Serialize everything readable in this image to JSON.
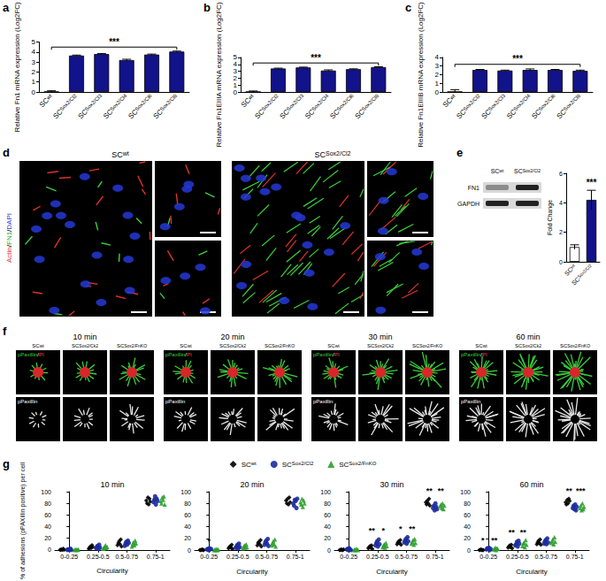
{
  "chart_data": [
    {
      "type": "bar",
      "panel_label": "a",
      "ylabel": "Relative Fn1 mRNA expression (Log2FC)",
      "categories": [
        "SCwt",
        "SCSox2/Cl2",
        "SCSox2/Cl3",
        "SCSox2/Cl4",
        "SCSox2/Cl6",
        "SCSox2/Cl8"
      ],
      "values": [
        0.02,
        3.65,
        3.8,
        3.2,
        3.75,
        4.05
      ],
      "errors": [
        0.1,
        0.05,
        0.05,
        0.08,
        0.05,
        0.05
      ],
      "color": "#12128a",
      "ylim": [
        0,
        5
      ],
      "yticks": [
        0,
        1,
        2,
        3,
        4,
        5
      ],
      "annotations": [
        {
          "text": "***",
          "x": [
            "SCwt",
            "SCSox2/Cl8"
          ],
          "y": 4.5
        }
      ]
    },
    {
      "type": "bar",
      "panel_label": "b",
      "ylabel": "Relative Fn1EIIIA mRNA expression (Log2FC)",
      "categories": [
        "SCwt",
        "SCSox2/Cl2",
        "SCSox2/Cl3",
        "SCSox2/Cl4",
        "SCSox2/Cl6",
        "SCSox2/Cl8"
      ],
      "values": [
        0.02,
        3.4,
        3.55,
        3.1,
        3.3,
        3.6
      ],
      "errors": [
        0.12,
        0.05,
        0.05,
        0.1,
        0.05,
        0.05
      ],
      "color": "#12128a",
      "ylim": [
        0,
        5
      ],
      "yticks": [
        0,
        1,
        2,
        3,
        4,
        5
      ],
      "annotations": [
        {
          "text": "***",
          "x": [
            "SCwt",
            "SCSox2/Cl8"
          ],
          "y": 4.2
        }
      ]
    },
    {
      "type": "bar",
      "panel_label": "c",
      "ylabel": "Relative Fn1EIIIB mRNA expression (Log2FC)",
      "categories": [
        "SCwt",
        "SCSox2/Cl2",
        "SCSox2/Cl3",
        "SCSox2/Cl4",
        "SCSox2/Cl6",
        "SCSox2/Cl8"
      ],
      "values": [
        0.02,
        2.55,
        2.48,
        2.55,
        2.55,
        2.45
      ],
      "errors": [
        0.25,
        0.06,
        0.05,
        0.12,
        0.06,
        0.08
      ],
      "color": "#12128a",
      "ylim": [
        0,
        4
      ],
      "yticks": [
        0,
        1,
        2,
        3,
        4
      ],
      "annotations": [
        {
          "text": "***",
          "x": [
            "SCwt",
            "SCSox2/Cl8"
          ],
          "y": 3.2
        }
      ]
    },
    {
      "type": "bar",
      "panel_label": "e",
      "ylabel": "Fold Change",
      "categories": [
        "SCwt",
        "SCSox2/Cl2"
      ],
      "values": [
        1.0,
        4.2
      ],
      "errors": [
        0.15,
        0.65
      ],
      "colors": [
        "#ffffff",
        "#12128a"
      ],
      "ylim": [
        0,
        6
      ],
      "yticks": [
        0,
        2,
        4,
        6
      ],
      "annotations": [
        {
          "text": "***",
          "x": "SCSox2/Cl2",
          "y": 5.1
        }
      ]
    },
    {
      "type": "scatter",
      "panel_label": "g",
      "title": "10 min",
      "xlabel": "Circularity",
      "ylabel": "% of adhesions (pPAXillin positive) per cell",
      "categories": [
        "0-0.25",
        "0.25-0.5",
        "0.5-0.75",
        "0.75-1"
      ],
      "ylim": [
        0,
        100
      ],
      "yticks": [
        0,
        20,
        40,
        60,
        80,
        100
      ],
      "legend": "top",
      "series": [
        {
          "name": "SCwt",
          "color": "#000000",
          "marker": "diamond",
          "values": [
            [
              0,
              0,
              1,
              0,
              2,
              0
            ],
            [
              2,
              4,
              6,
              3,
              8,
              5
            ],
            [
              8,
              12,
              15,
              10,
              18,
              6
            ],
            [
              85,
              80,
              90,
              78,
              88,
              83
            ]
          ]
        },
        {
          "name": "SCSox2/Cl2",
          "color": "#1c2b9e",
          "marker": "circle",
          "values": [
            [
              0,
              1,
              0,
              0,
              2,
              0
            ],
            [
              3,
              5,
              7,
              2,
              9,
              4
            ],
            [
              7,
              11,
              14,
              9,
              16,
              12
            ],
            [
              82,
              86,
              92,
              78,
              88,
              84
            ]
          ]
        },
        {
          "name": "SCSox2/FnKO",
          "color": "#2ca02c",
          "marker": "triangle",
          "values": [
            [
              0,
              0,
              1,
              0,
              0,
              1
            ],
            [
              2,
              4,
              6,
              8,
              3,
              5
            ],
            [
              6,
              10,
              13,
              8,
              16,
              11
            ],
            [
              84,
              80,
              90,
              86,
              92,
              78
            ]
          ]
        }
      ]
    },
    {
      "type": "scatter",
      "title": "20 min",
      "xlabel": "Circularity",
      "categories": [
        "0-0.25",
        "0.25-0.5",
        "0.5-0.75",
        "0.75-1"
      ],
      "ylim": [
        0,
        100
      ],
      "yticks": [
        0,
        20,
        40,
        60,
        80,
        100
      ],
      "series": [
        {
          "name": "SCwt",
          "color": "#000000",
          "marker": "diamond",
          "values": [
            [
              0,
              0,
              0,
              1,
              0,
              0
            ],
            [
              3,
              5,
              7,
              4,
              9,
              2
            ],
            [
              8,
              12,
              14,
              10,
              17,
              6
            ],
            [
              85,
              80,
              88,
              78,
              90,
              82
            ]
          ]
        },
        {
          "name": "SCSox2/Cl2",
          "color": "#1c2b9e",
          "marker": "circle",
          "values": [
            [
              1,
              2,
              0,
              3,
              1,
              2
            ],
            [
              4,
              6,
              9,
              3,
              11,
              5
            ],
            [
              9,
              13,
              16,
              11,
              19,
              7
            ],
            [
              80,
              76,
              86,
              84,
              72,
              88
            ]
          ]
        },
        {
          "name": "SCSox2/FnKO",
          "color": "#2ca02c",
          "marker": "triangle",
          "values": [
            [
              0,
              1,
              0,
              2,
              0,
              1
            ],
            [
              3,
              6,
              8,
              4,
              10,
              5
            ],
            [
              8,
              12,
              15,
              10,
              18,
              6
            ],
            [
              82,
              78,
              88,
              74,
              85,
              80
            ]
          ]
        }
      ],
      "annotations": [
        {
          "text": "*",
          "x": "0-0.25",
          "y": 8
        }
      ]
    },
    {
      "type": "scatter",
      "title": "30 min",
      "xlabel": "Circularity",
      "categories": [
        "0-0.25",
        "0.25-0.5",
        "0.5-0.75",
        "0.75-1"
      ],
      "ylim": [
        0,
        100
      ],
      "yticks": [
        0,
        20,
        40,
        60,
        80,
        100
      ],
      "series": [
        {
          "name": "SCwt",
          "color": "#000000",
          "marker": "diamond",
          "values": [
            [
              0,
              0,
              1,
              0,
              0,
              1
            ],
            [
              3,
              5,
              7,
              4,
              8,
              2
            ],
            [
              10,
              13,
              15,
              12,
              17,
              9
            ],
            [
              82,
              78,
              85,
              80,
              88,
              76
            ]
          ]
        },
        {
          "name": "SCSox2/Cl2",
          "color": "#1c2b9e",
          "marker": "circle",
          "values": [
            [
              1,
              2,
              0,
              3,
              1,
              0
            ],
            [
              8,
              12,
              15,
              6,
              18,
              10
            ],
            [
              13,
              16,
              19,
              11,
              22,
              15
            ],
            [
              72,
              76,
              68,
              80,
              74,
              70
            ]
          ]
        },
        {
          "name": "SCSox2/FnKO",
          "color": "#2ca02c",
          "marker": "triangle",
          "values": [
            [
              0,
              1,
              0,
              2,
              1,
              0
            ],
            [
              5,
              8,
              10,
              4,
              12,
              7
            ],
            [
              11,
              14,
              17,
              9,
              19,
              12
            ],
            [
              75,
              78,
              72,
              80,
              70,
              76
            ]
          ]
        }
      ],
      "annotations": [
        {
          "text": "**",
          "x": "0.25-0.5",
          "y": 26
        },
        {
          "text": "*",
          "x": "0.25-0.5",
          "y": 26
        },
        {
          "text": "*",
          "x": "0.5-0.75",
          "y": 30
        },
        {
          "text": "**",
          "x": "0.5-0.75",
          "y": 30
        },
        {
          "text": "**",
          "x": "0.75-1",
          "y": 94
        },
        {
          "text": "**",
          "x": "0.75-1",
          "y": 94
        }
      ]
    },
    {
      "type": "scatter",
      "title": "60 min",
      "xlabel": "Circularity",
      "categories": [
        "0-0.25",
        "0.25-0.5",
        "0.5-0.75",
        "0.75-1"
      ],
      "ylim": [
        0,
        100
      ],
      "yticks": [
        0,
        20,
        40,
        60,
        80,
        100
      ],
      "series": [
        {
          "name": "SCwt",
          "color": "#000000",
          "marker": "diamond",
          "values": [
            [
              0,
              0,
              1,
              0,
              0,
              0
            ],
            [
              4,
              6,
              8,
              5,
              9,
              3
            ],
            [
              10,
              13,
              16,
              12,
              18,
              9
            ],
            [
              82,
              78,
              86,
              80,
              88,
              84
            ]
          ]
        },
        {
          "name": "SCSox2/Cl2",
          "color": "#1c2b9e",
          "marker": "circle",
          "values": [
            [
              1,
              3,
              2,
              4,
              0,
              2
            ],
            [
              8,
              10,
              14,
              6,
              16,
              11
            ],
            [
              11,
              14,
              17,
              10,
              20,
              13
            ],
            [
              72,
              76,
              70,
              78,
              68,
              74
            ]
          ]
        },
        {
          "name": "SCSox2/FnKO",
          "color": "#2ca02c",
          "marker": "triangle",
          "values": [
            [
              1,
              2,
              4,
              0,
              3,
              2
            ],
            [
              7,
              11,
              13,
              5,
              17,
              9
            ],
            [
              12,
              15,
              18,
              10,
              22,
              14
            ],
            [
              72,
              76,
              68,
              80,
              70,
              74
            ]
          ]
        }
      ],
      "annotations": [
        {
          "text": "*",
          "x": "0-0.25",
          "y": 10
        },
        {
          "text": "**",
          "x": "0-0.25",
          "y": 10
        },
        {
          "text": "**",
          "x": "0.25-0.5",
          "y": 24
        },
        {
          "text": "**",
          "x": "0.25-0.5",
          "y": 24
        },
        {
          "text": "**",
          "x": "0.75-1",
          "y": 94
        },
        {
          "text": "***",
          "x": "0.75-1",
          "y": 94
        }
      ]
    }
  ],
  "images": {
    "d": {
      "panel_label": "d",
      "stain_label": "Actin/FN1/DAPI",
      "columns": [
        "SCwt",
        "SCSox2/Cl2"
      ]
    },
    "e_blot": {
      "lanes": [
        "SCwt",
        "SCSox2/Cl2"
      ],
      "bands": [
        "FN1",
        "GAPDH"
      ]
    },
    "f": {
      "panel_label": "f",
      "times": [
        "10 min",
        "20 min",
        "30 min",
        "60 min"
      ],
      "columns": [
        "SCwt",
        "SCSox2/Ck2",
        "SCSox2/FnKO"
      ],
      "rows": [
        "pPaxillin/PI",
        "pPaxillin"
      ]
    }
  }
}
